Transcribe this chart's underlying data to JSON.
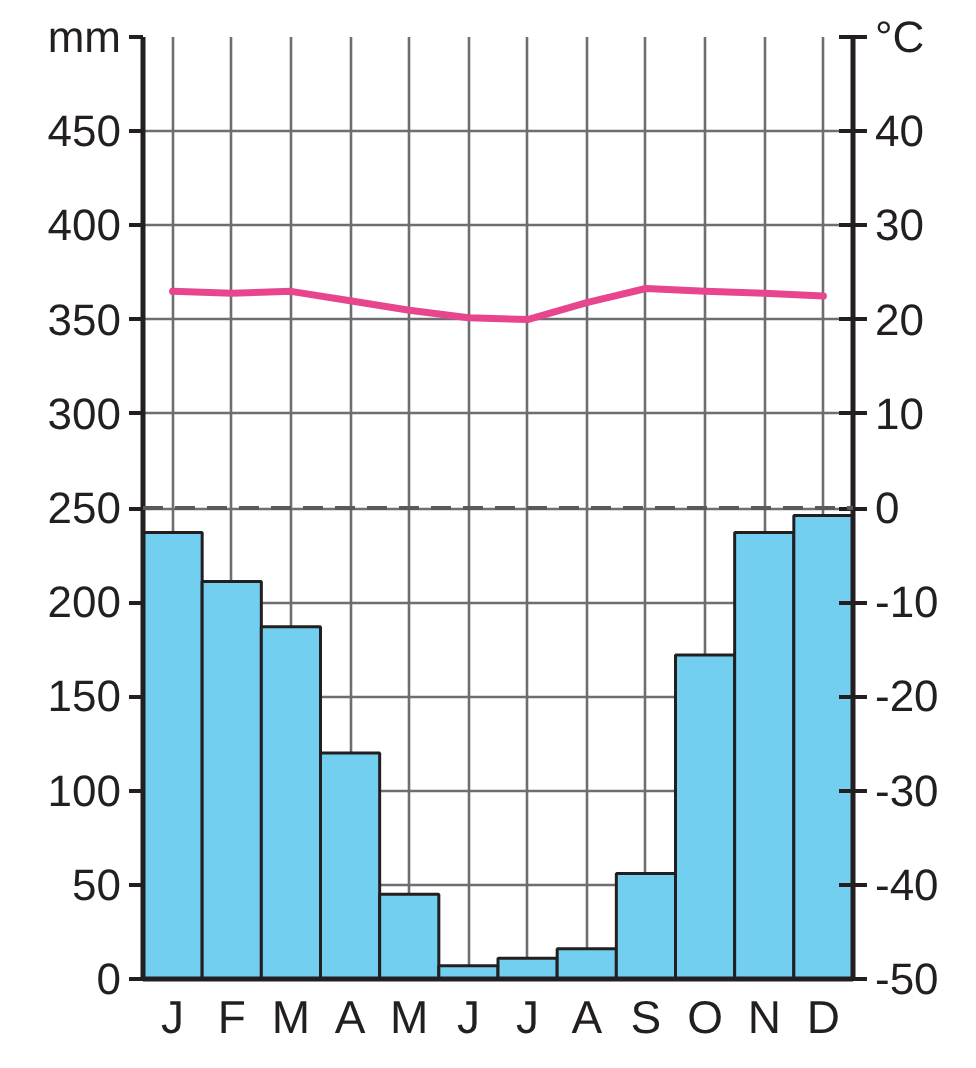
{
  "chart_data": {
    "type": "bar",
    "categories": [
      "J",
      "F",
      "M",
      "A",
      "M",
      "J",
      "J",
      "A",
      "S",
      "O",
      "N",
      "D"
    ],
    "series": [
      {
        "color": "#72cff0",
        "values": [
          237,
          211,
          187,
          120,
          45,
          7,
          11,
          16,
          56,
          172,
          237,
          246
        ]
      },
      {
        "type": "line",
        "axis": "y2",
        "color": "#e8458f",
        "values": [
          23,
          22.8,
          23,
          22,
          21,
          20.2,
          20,
          21.8,
          23.3,
          23,
          22.8,
          22.5
        ]
      }
    ],
    "ylabel": "mm",
    "y2label": "°C",
    "ylim": [
      0,
      500
    ],
    "yticks": [
      0,
      50,
      100,
      150,
      200,
      250,
      300,
      350,
      400,
      450,
      {
        "value": 500,
        "label": null
      }
    ],
    "y2lim": [
      -50,
      50
    ],
    "y2ticks": [
      -50,
      -40,
      -30,
      -20,
      -10,
      0,
      10,
      20,
      30,
      40,
      {
        "value": 50,
        "label": null
      }
    ],
    "ref_lines": [
      {
        "axis": "y2",
        "value": 0,
        "color": "#58595b",
        "line_style": "dashed"
      }
    ],
    "grid": true
  }
}
